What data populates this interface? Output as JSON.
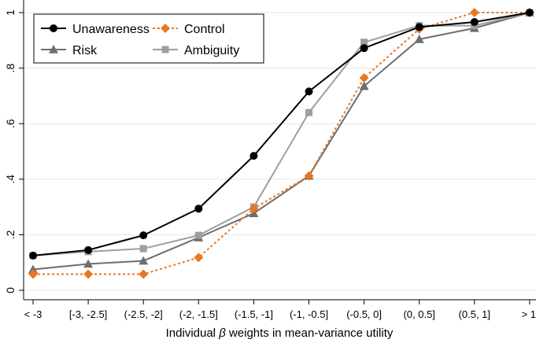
{
  "chart_data": {
    "type": "line",
    "xlabel_prefix": "Individual ",
    "xlabel_symbol": "β",
    "xlabel_suffix": " weights in mean-variance utility",
    "ylabel": "",
    "ylim": [
      0,
      1
    ],
    "yticks": [
      {
        "value": 0,
        "label": "0"
      },
      {
        "value": 0.2,
        "label": ".2"
      },
      {
        "value": 0.4,
        "label": ".4"
      },
      {
        "value": 0.6,
        "label": ".6"
      },
      {
        "value": 0.8,
        "label": ".8"
      },
      {
        "value": 1,
        "label": "1"
      }
    ],
    "categories": [
      "< -3",
      "[-3, -2.5]",
      "(-2.5, -2]",
      "(-2, -1.5]",
      "(-1.5, -1]",
      "(-1, -0.5]",
      "(-0.5, 0]",
      "(0, 0.5]",
      "(0.5, 1]",
      "> 1"
    ],
    "grid": "horizontal",
    "legend_position": "top-left",
    "series": [
      {
        "name": "Unawareness",
        "color": "#000000",
        "marker": "circle",
        "dash": "solid",
        "values": [
          0.125,
          0.145,
          0.198,
          0.294,
          0.484,
          0.716,
          0.872,
          0.948,
          0.966,
          1.0
        ]
      },
      {
        "name": "Control",
        "color": "#E87722",
        "marker": "diamond",
        "dash": "dotted",
        "values": [
          0.058,
          0.058,
          0.058,
          0.118,
          0.294,
          0.412,
          0.765,
          0.941,
          1.0,
          1.0
        ]
      },
      {
        "name": "Risk",
        "color": "#6E6E6E",
        "marker": "triangle",
        "dash": "solid",
        "values": [
          0.075,
          0.095,
          0.106,
          0.19,
          0.277,
          0.412,
          0.735,
          0.904,
          0.944,
          1.0
        ]
      },
      {
        "name": "Ambiguity",
        "color": "#9E9E9E",
        "marker": "square",
        "dash": "solid",
        "values": [
          0.125,
          0.139,
          0.15,
          0.198,
          0.3,
          0.64,
          0.893,
          0.953,
          0.953,
          1.0
        ]
      }
    ]
  }
}
